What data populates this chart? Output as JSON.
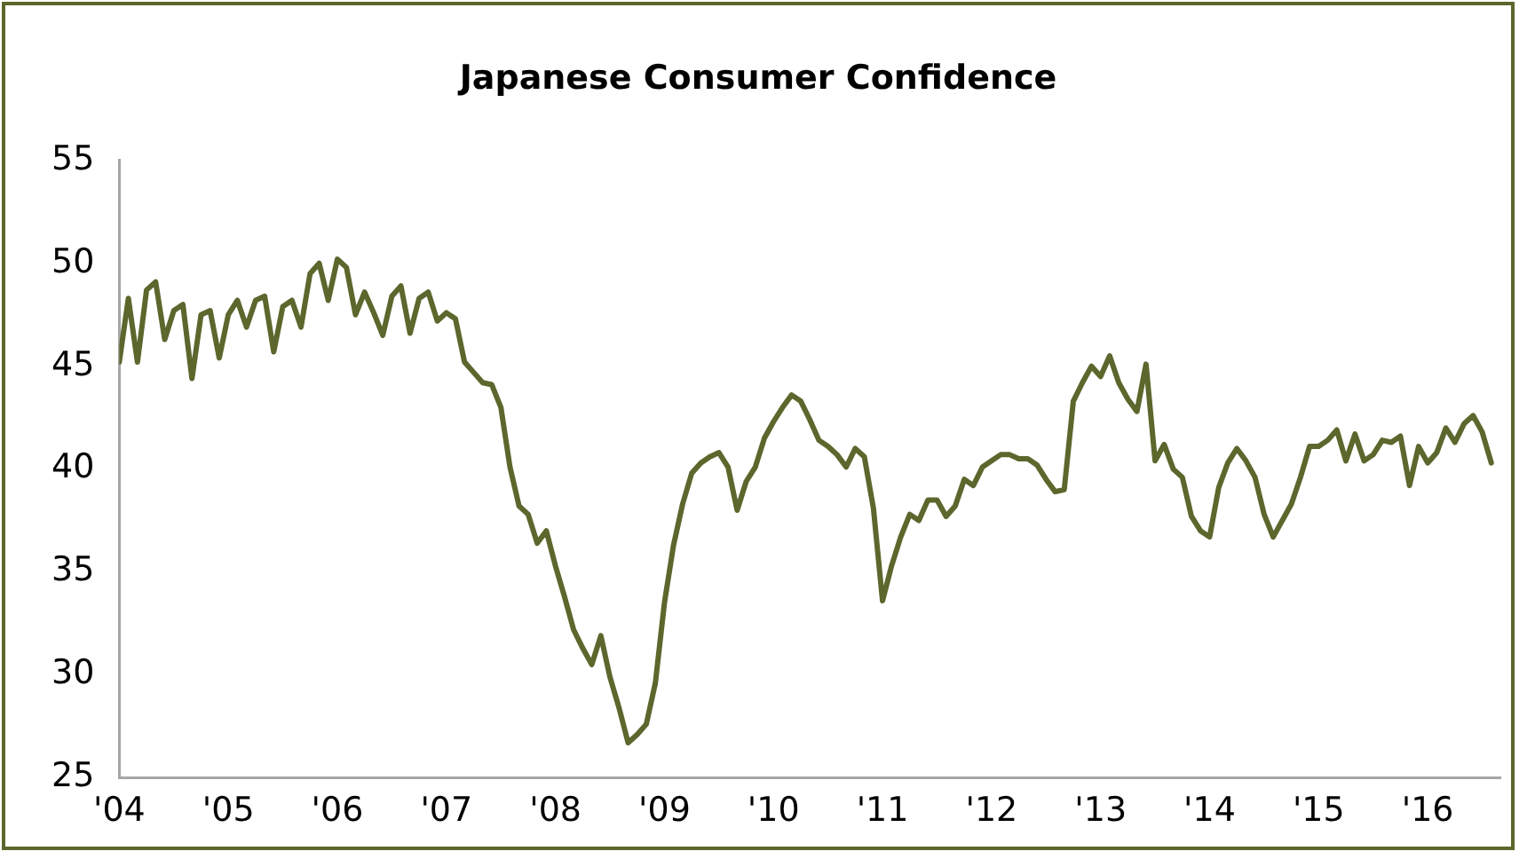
{
  "chart_data": {
    "type": "line",
    "title": "Japanese Consumer Confidence",
    "x": [
      "2004-01",
      "2004-02",
      "2004-03",
      "2004-04",
      "2004-05",
      "2004-06",
      "2004-07",
      "2004-08",
      "2004-09",
      "2004-10",
      "2004-11",
      "2004-12",
      "2005-01",
      "2005-02",
      "2005-03",
      "2005-04",
      "2005-05",
      "2005-06",
      "2005-07",
      "2005-08",
      "2005-09",
      "2005-10",
      "2005-11",
      "2005-12",
      "2006-01",
      "2006-02",
      "2006-03",
      "2006-04",
      "2006-05",
      "2006-06",
      "2006-07",
      "2006-08",
      "2006-09",
      "2006-10",
      "2006-11",
      "2006-12",
      "2007-01",
      "2007-02",
      "2007-03",
      "2007-04",
      "2007-05",
      "2007-06",
      "2007-07",
      "2007-08",
      "2007-09",
      "2007-10",
      "2007-11",
      "2007-12",
      "2008-01",
      "2008-02",
      "2008-03",
      "2008-04",
      "2008-05",
      "2008-06",
      "2008-07",
      "2008-08",
      "2008-09",
      "2008-10",
      "2008-11",
      "2008-12",
      "2009-01",
      "2009-02",
      "2009-03",
      "2009-04",
      "2009-05",
      "2009-06",
      "2009-07",
      "2009-08",
      "2009-09",
      "2009-10",
      "2009-11",
      "2009-12",
      "2010-01",
      "2010-02",
      "2010-03",
      "2010-04",
      "2010-05",
      "2010-06",
      "2010-07",
      "2010-08",
      "2010-09",
      "2010-10",
      "2010-11",
      "2010-12",
      "2011-01",
      "2011-02",
      "2011-03",
      "2011-04",
      "2011-05",
      "2011-06",
      "2011-07",
      "2011-08",
      "2011-09",
      "2011-10",
      "2011-11",
      "2011-12",
      "2012-01",
      "2012-02",
      "2012-03",
      "2012-04",
      "2012-05",
      "2012-06",
      "2012-07",
      "2012-08",
      "2012-09",
      "2012-10",
      "2012-11",
      "2012-12",
      "2013-01",
      "2013-02",
      "2013-03",
      "2013-04",
      "2013-05",
      "2013-06",
      "2013-07",
      "2013-08",
      "2013-09",
      "2013-10",
      "2013-11",
      "2013-12",
      "2014-01",
      "2014-02",
      "2014-03",
      "2014-04",
      "2014-05",
      "2014-06",
      "2014-07",
      "2014-08",
      "2014-09",
      "2014-10",
      "2014-11",
      "2014-12",
      "2015-01",
      "2015-02",
      "2015-03",
      "2015-04",
      "2015-05",
      "2015-06",
      "2015-07",
      "2015-08",
      "2015-09",
      "2015-10",
      "2015-11",
      "2015-12",
      "2016-01",
      "2016-02",
      "2016-03",
      "2016-04",
      "2016-05",
      "2016-06",
      "2016-07",
      "2016-08"
    ],
    "series": [
      {
        "color": "#5b672c",
        "values": [
          45.2,
          48.3,
          45.2,
          48.7,
          49.1,
          46.3,
          47.7,
          48,
          44.4,
          47.5,
          47.7,
          45.4,
          47.5,
          48.2,
          46.9,
          48.2,
          48.4,
          45.7,
          47.9,
          48.2,
          46.9,
          49.5,
          50,
          48.2,
          50.2,
          49.8,
          47.5,
          48.6,
          47.6,
          46.5,
          48.4,
          48.9,
          46.6,
          48.3,
          48.6,
          47.2,
          47.6,
          47.3,
          45.2,
          44.7,
          44.2,
          44.1,
          43,
          40.1,
          38.2,
          37.8,
          36.4,
          37,
          35.3,
          33.8,
          32.2,
          31.3,
          30.5,
          31.9,
          29.9,
          28.4,
          26.7,
          27.1,
          27.6,
          29.6,
          33.5,
          36.3,
          38.3,
          39.8,
          40.3,
          40.6,
          40.8,
          40.1,
          38,
          39.4,
          40.1,
          41.5,
          42.3,
          43,
          43.6,
          43.3,
          42.4,
          41.4,
          41.1,
          40.7,
          40.1,
          41,
          40.6,
          38.1,
          33.6,
          35.3,
          36.7,
          37.8,
          37.5,
          38.5,
          38.5,
          37.7,
          38.2,
          39.5,
          39.2,
          40.1,
          40.4,
          40.7,
          40.7,
          40.5,
          40.5,
          40.2,
          39.5,
          38.9,
          39,
          43.3,
          44.2,
          45,
          44.5,
          45.5,
          44.2,
          43.4,
          42.8,
          45.1,
          40.4,
          41.2,
          40,
          39.6,
          37.7,
          37,
          36.7,
          39.1,
          40.3,
          41,
          40.4,
          39.6,
          37.8,
          36.7,
          37.5,
          38.3,
          39.6,
          41.1,
          41.1,
          41.4,
          41.9,
          40.4,
          41.7,
          40.4,
          40.7,
          41.4,
          41.3,
          41.6,
          39.2,
          41.1,
          40.3,
          40.8,
          42,
          41.3,
          42.2,
          42.6,
          41.8,
          40.3
        ]
      }
    ],
    "xlim": [
      "2004-01",
      "2016-09"
    ],
    "xticks": [
      {
        "value": "2004-01",
        "label": "'04"
      },
      {
        "value": "2005-01",
        "label": "'05"
      },
      {
        "value": "2006-01",
        "label": "'06"
      },
      {
        "value": "2007-01",
        "label": "'07"
      },
      {
        "value": "2008-01",
        "label": "'08"
      },
      {
        "value": "2009-01",
        "label": "'09"
      },
      {
        "value": "2010-01",
        "label": "'10"
      },
      {
        "value": "2011-01",
        "label": "'11"
      },
      {
        "value": "2012-01",
        "label": "'12"
      },
      {
        "value": "2013-01",
        "label": "'13"
      },
      {
        "value": "2014-01",
        "label": "'14"
      },
      {
        "value": "2015-01",
        "label": "'15"
      },
      {
        "value": "2016-01",
        "label": "'16"
      }
    ],
    "ylim": [
      25,
      55
    ],
    "yticks": [
      25,
      30,
      35,
      40,
      45,
      50,
      55
    ],
    "grid": false,
    "legend": false,
    "marker": "none",
    "line_style": "solid"
  }
}
